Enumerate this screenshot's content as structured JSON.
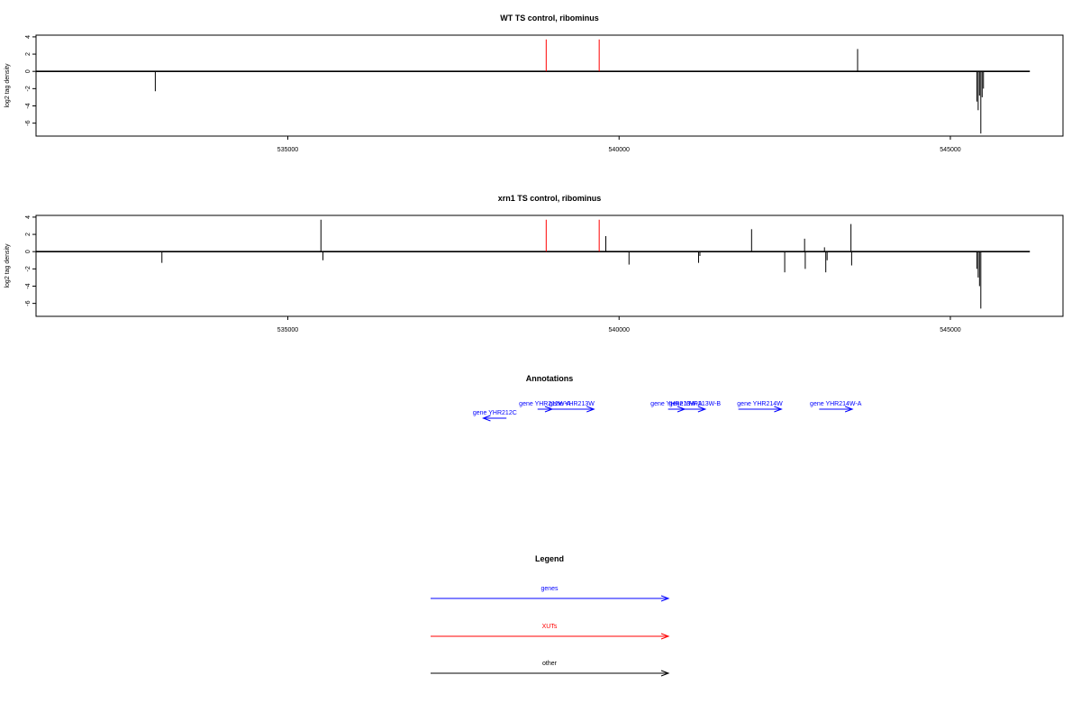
{
  "colors": {
    "genes": "#0000ff",
    "xuts": "#ff0000",
    "other": "#000000",
    "baseline": "#000000"
  },
  "x_axis": {
    "range": [
      531200,
      546700
    ],
    "ticks": [
      535000,
      540000,
      545000
    ],
    "tick_labels": [
      "535000",
      "540000",
      "545000"
    ]
  },
  "chart_data": [
    {
      "type": "bar",
      "title": "WT TS control, ribominus",
      "ylabel": "log2 tag density",
      "ylim": [
        -7.5,
        4.2
      ],
      "yticks": [
        4,
        2,
        0,
        -2,
        -4,
        -6
      ],
      "ytick_labels": [
        "4",
        "2",
        "0",
        "-2",
        "-4",
        "-6"
      ],
      "baseline": {
        "x0": 531200,
        "x1": 546200,
        "y": 0
      },
      "features": [
        {
          "x": 533000,
          "value": -2.3,
          "kind": "other"
        },
        {
          "x": 538900,
          "value": 3.7,
          "kind": "xut"
        },
        {
          "x": 539700,
          "value": 3.7,
          "kind": "xut"
        },
        {
          "x": 543600,
          "value": 2.6,
          "kind": "other"
        },
        {
          "x": 543600,
          "value": 1.0,
          "kind": "other"
        },
        {
          "x": 545400,
          "value": -3.5,
          "kind": "other"
        },
        {
          "x": 545420,
          "value": -4.5,
          "kind": "other"
        },
        {
          "x": 545440,
          "value": -2.8,
          "kind": "other"
        },
        {
          "x": 545460,
          "value": -7.2,
          "kind": "other"
        },
        {
          "x": 545480,
          "value": -3.0,
          "kind": "other"
        },
        {
          "x": 545500,
          "value": -2.0,
          "kind": "other"
        }
      ]
    },
    {
      "type": "bar",
      "title": "xrn1 TS control, ribominus",
      "ylabel": "log2 tag density",
      "ylim": [
        -7.5,
        4.2
      ],
      "yticks": [
        4,
        2,
        0,
        -2,
        -4,
        -6
      ],
      "ytick_labels": [
        "4",
        "2",
        "0",
        "-2",
        "-4",
        "-6"
      ],
      "baseline": {
        "x0": 531200,
        "x1": 546200,
        "y": 0
      },
      "features": [
        {
          "x": 533100,
          "value": -1.3,
          "kind": "other"
        },
        {
          "x": 535500,
          "value": 3.7,
          "kind": "other"
        },
        {
          "x": 535530,
          "value": -1.0,
          "kind": "other"
        },
        {
          "x": 538900,
          "value": 3.7,
          "kind": "xut"
        },
        {
          "x": 539700,
          "value": 3.7,
          "kind": "xut"
        },
        {
          "x": 539800,
          "value": 1.8,
          "kind": "other"
        },
        {
          "x": 540150,
          "value": -1.5,
          "kind": "other"
        },
        {
          "x": 541200,
          "value": -1.3,
          "kind": "other"
        },
        {
          "x": 541220,
          "value": -0.5,
          "kind": "other"
        },
        {
          "x": 542000,
          "value": 2.6,
          "kind": "other"
        },
        {
          "x": 542500,
          "value": -2.4,
          "kind": "other"
        },
        {
          "x": 542800,
          "value": 1.5,
          "kind": "other"
        },
        {
          "x": 542810,
          "value": -2.0,
          "kind": "other"
        },
        {
          "x": 543100,
          "value": 0.5,
          "kind": "other"
        },
        {
          "x": 543120,
          "value": -2.4,
          "kind": "other"
        },
        {
          "x": 543140,
          "value": -1.0,
          "kind": "other"
        },
        {
          "x": 543500,
          "value": 3.2,
          "kind": "other"
        },
        {
          "x": 543510,
          "value": -1.6,
          "kind": "other"
        },
        {
          "x": 545400,
          "value": -2.0,
          "kind": "other"
        },
        {
          "x": 545420,
          "value": -3.0,
          "kind": "other"
        },
        {
          "x": 545440,
          "value": -4.0,
          "kind": "other"
        },
        {
          "x": 545460,
          "value": -6.6,
          "kind": "other"
        }
      ]
    }
  ],
  "annotations": {
    "title": "Annotations",
    "genes": [
      {
        "label": "gene YHR212C",
        "start": 538300,
        "end": 537950,
        "strand": "-",
        "tier": 1
      },
      {
        "label": "gene YHR212W-A",
        "start": 538770,
        "end": 538990,
        "strand": "+",
        "tier": 0
      },
      {
        "label": "gene YHR213W",
        "start": 538950,
        "end": 539620,
        "strand": "+",
        "tier": 0
      },
      {
        "label": "gene YHR213W-A",
        "start": 540740,
        "end": 540990,
        "strand": "+",
        "tier": 0
      },
      {
        "label": "gene YHR213W-B",
        "start": 540990,
        "end": 541300,
        "strand": "+",
        "tier": 0
      },
      {
        "label": "gene YHR214W",
        "start": 541800,
        "end": 542450,
        "strand": "+",
        "tier": 0
      },
      {
        "label": "gene YHR214W-A",
        "start": 543020,
        "end": 543520,
        "strand": "+",
        "tier": 0
      }
    ]
  },
  "legend": {
    "title": "Legend",
    "items": [
      {
        "label": "genes",
        "color": "#0000ff"
      },
      {
        "label": "XUTs",
        "color": "#ff0000"
      },
      {
        "label": "other",
        "color": "#000000"
      }
    ]
  }
}
